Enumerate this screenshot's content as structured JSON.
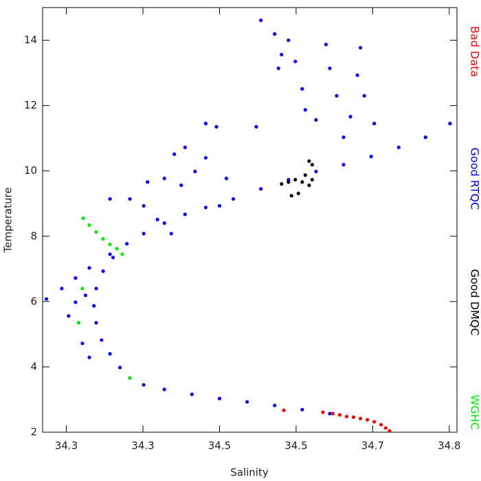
{
  "chart_data": {
    "type": "scatter",
    "xlabel": "Salinity",
    "ylabel": "Temperature",
    "xlim": [
      34.219,
      34.76
    ],
    "ylim": [
      2,
      15
    ],
    "xticks": [
      {
        "value": 34.25,
        "label": "34.3"
      },
      {
        "value": 34.35,
        "label": "34.3"
      },
      {
        "value": 34.45,
        "label": "34.5"
      },
      {
        "value": 34.55,
        "label": "34.5"
      },
      {
        "value": 34.65,
        "label": "34.7"
      },
      {
        "value": 34.75,
        "label": "34.8"
      }
    ],
    "yticks": [
      2,
      4,
      6,
      8,
      10,
      12,
      14
    ],
    "series": [
      {
        "name": "Bad Data",
        "color": "#ff0000",
        "x": [
          34.585,
          34.598,
          34.607,
          34.616,
          34.625,
          34.634,
          34.643,
          34.652,
          34.661,
          34.667,
          34.672,
          34.534
        ],
        "values": [
          2.61,
          2.57,
          2.53,
          2.48,
          2.46,
          2.42,
          2.38,
          2.32,
          2.23,
          2.13,
          2.04,
          2.67
        ]
      },
      {
        "name": "Good RTQC",
        "color": "#0000ff",
        "x": [
          34.594,
          34.558,
          34.522,
          34.486,
          34.45,
          34.414,
          34.378,
          34.351,
          34.333,
          34.32,
          34.307,
          34.296,
          34.289,
          34.286,
          34.289,
          34.298,
          34.311,
          34.329,
          34.351,
          34.378,
          34.405,
          34.432,
          34.468,
          34.504,
          34.54,
          34.576,
          34.612,
          34.648,
          34.684,
          34.719,
          34.751,
          34.224,
          34.244,
          34.262,
          34.28,
          34.307,
          34.253,
          34.266,
          34.271,
          34.28,
          34.262,
          34.275,
          34.504,
          34.522,
          34.531,
          34.527,
          34.54,
          34.549,
          34.558,
          34.562,
          34.576,
          34.589,
          34.594,
          34.603,
          34.612,
          34.621,
          34.63,
          34.634,
          34.639,
          34.652,
          34.432,
          34.446,
          34.498,
          34.356,
          34.378,
          34.4,
          34.333,
          34.351,
          34.307,
          34.405,
          34.391,
          34.418,
          34.432,
          34.459,
          34.45,
          34.369,
          34.387
        ],
        "values": [
          2.57,
          2.69,
          2.82,
          2.93,
          3.03,
          3.16,
          3.31,
          3.45,
          3.66,
          3.98,
          4.4,
          4.82,
          5.35,
          5.87,
          6.4,
          6.93,
          7.35,
          7.77,
          8.08,
          8.4,
          8.67,
          8.88,
          9.14,
          9.45,
          9.73,
          9.98,
          10.19,
          10.44,
          10.72,
          11.03,
          11.45,
          6.08,
          6.4,
          6.72,
          7.03,
          7.45,
          5.56,
          5.35,
          4.72,
          4.29,
          5.98,
          6.19,
          14.61,
          14.19,
          13.56,
          13.14,
          14.0,
          13.35,
          12.51,
          11.87,
          11.56,
          13.87,
          13.14,
          12.3,
          11.03,
          11.66,
          12.93,
          13.77,
          12.3,
          11.45,
          11.45,
          11.35,
          11.35,
          9.66,
          9.77,
          9.56,
          9.14,
          8.93,
          9.14,
          10.72,
          10.51,
          9.98,
          10.4,
          9.77,
          8.93,
          8.51,
          8.08
        ]
      },
      {
        "name": "Good DMQC",
        "color": "#000000",
        "x": [
          34.531,
          34.54,
          34.549,
          34.558,
          34.567,
          34.571,
          34.567,
          34.553,
          34.544,
          34.562,
          34.571
        ],
        "values": [
          9.6,
          9.66,
          9.73,
          9.66,
          9.56,
          10.19,
          10.3,
          9.31,
          9.24,
          9.87,
          9.73
        ]
      },
      {
        "name": "WGHC",
        "color": "#00ee00",
        "x": [
          34.272,
          34.28,
          34.289,
          34.298,
          34.307,
          34.316,
          34.323,
          34.271,
          34.266,
          34.333
        ],
        "values": [
          8.55,
          8.34,
          8.13,
          7.92,
          7.75,
          7.62,
          7.45,
          6.4,
          5.35,
          3.66
        ]
      }
    ]
  }
}
